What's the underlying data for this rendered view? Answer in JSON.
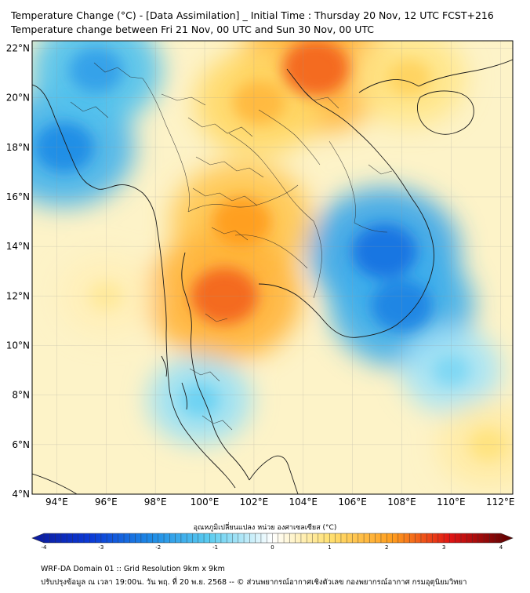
{
  "title": {
    "line1": "Temperature Change (°C) - [Data Assimilation] _ Initial Time : Thursday 20 Nov, 12 UTC FCST+216",
    "line2": "Temperature change between Fri 21 Nov, 00 UTC and Sun 30 Nov, 00 UTC"
  },
  "map": {
    "lat_labels": [
      "22°N",
      "20°N",
      "18°N",
      "16°N",
      "14°N",
      "12°N",
      "10°N",
      "8°N",
      "6°N",
      "4°N"
    ],
    "lon_labels": [
      "94°E",
      "96°E",
      "98°E",
      "100°E",
      "102°E",
      "104°E",
      "106°E",
      "108°E",
      "110°E",
      "112°E"
    ],
    "lat_range": [
      4,
      22.3
    ],
    "lon_range": [
      93,
      112.5
    ]
  },
  "colorbar": {
    "title": "อุณหภูมิเปลี่ยนแปลง หน่วย องศาเซลเซียส (°C)",
    "ticks": [
      "-4",
      "-3",
      "-2",
      "-1",
      "0",
      "1",
      "2",
      "3",
      "4"
    ],
    "min": -4,
    "max": 4
  },
  "footer": {
    "line1": "WRF-DA Domain 01 :: Grid Resolution 9km x 9km",
    "line2": "ปรับปรุงข้อมูล ณ เวลา 19:00น. วัน พฤ. ที่ 20 พ.ย. 2568 -- © ส่วนพยากรณ์อากาศเชิงตัวเลข กองพยากรณ์อากาศ กรมอุตุนิยมวิทยา"
  },
  "colors": {
    "cold_dark": "#0a2fc8",
    "cold": "#1e8ce6",
    "cool": "#5ccdf0",
    "neutral": "#ffffff",
    "warm": "#ffd84a",
    "hot": "#ff8a1e",
    "very_hot": "#e01414",
    "extreme": "#6e0000"
  },
  "chart_data": {
    "type": "heatmap",
    "title": "Temperature change between Fri 21 Nov, 00 UTC and Sun 30 Nov, 00 UTC",
    "units": "°C",
    "value_range": [
      -4,
      4
    ],
    "features": [
      {
        "name": "NW cold pocket (Myanmar coast)",
        "lon": 94.3,
        "lat": 18.0,
        "value": -2.0
      },
      {
        "name": "Upper-left cold spot",
        "lon": 95.6,
        "lat": 21.1,
        "value": -1.7
      },
      {
        "name": "Northern Laos/Vietnam warm core",
        "lon": 104.5,
        "lat": 21.2,
        "value": 2.4
      },
      {
        "name": "Northern Thailand warm",
        "lon": 102.2,
        "lat": 19.8,
        "value": 1.6
      },
      {
        "name": "Central Thailand warm",
        "lon": 101.5,
        "lat": 15.0,
        "value": 2.0
      },
      {
        "name": "Gulf of Thailand coast warm",
        "lon": 100.8,
        "lat": 12.0,
        "value": 2.4
      },
      {
        "name": "Cambodia/S Vietnam cold core",
        "lon": 107.3,
        "lat": 13.8,
        "value": -2.3
      },
      {
        "name": "Southern Vietnam cold",
        "lon": 108.0,
        "lat": 11.6,
        "value": -2.1
      },
      {
        "name": "Hainan area warm",
        "lon": 108.3,
        "lat": 20.8,
        "value": 1.2
      },
      {
        "name": "Malay peninsula cool",
        "lon": 99.8,
        "lat": 7.8,
        "value": -0.9
      },
      {
        "name": "South China Sea cool",
        "lon": 110.0,
        "lat": 9.0,
        "value": -0.8
      },
      {
        "name": "Andaman Sea warm",
        "lon": 96.0,
        "lat": 12.0,
        "value": 0.7
      },
      {
        "name": "Bottom-right warm patch",
        "lon": 111.5,
        "lat": 6.0,
        "value": 0.9
      }
    ]
  }
}
